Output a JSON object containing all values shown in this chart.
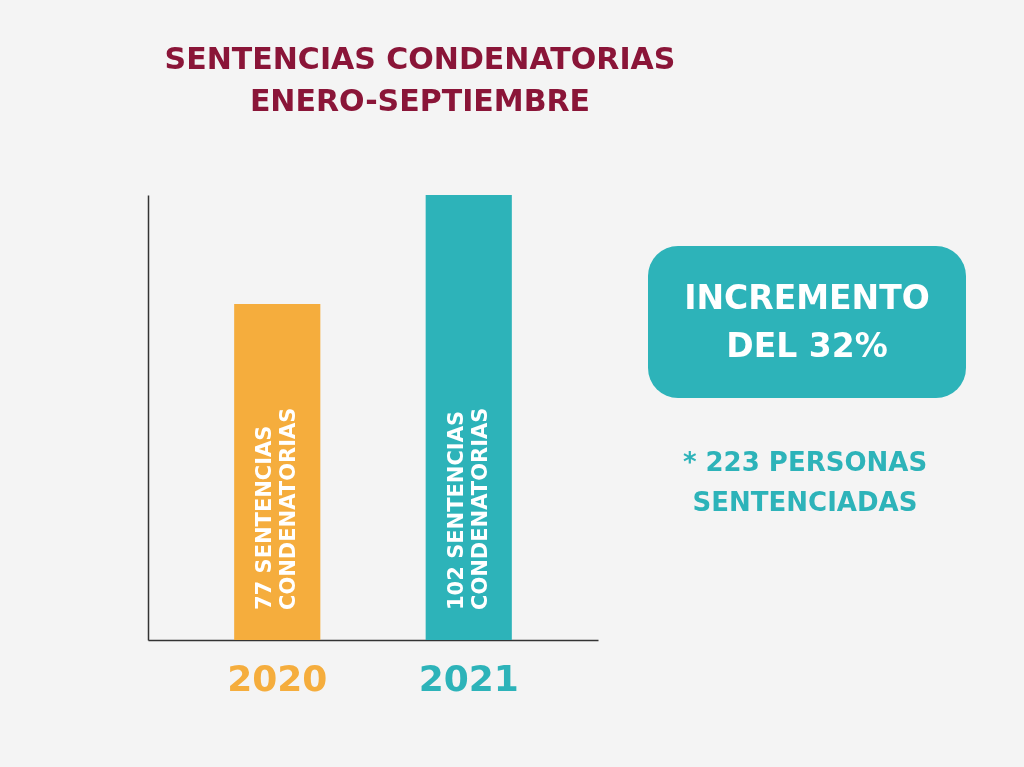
{
  "chart_data": {
    "type": "bar",
    "title": "SENTENCIAS CONDENATORIAS\nENERO-SEPTIEMBRE",
    "categories": [
      "2020",
      "2021"
    ],
    "values": [
      77,
      102
    ],
    "colors": [
      "#f5ad3d",
      "#2db3b9"
    ],
    "value_labels": [
      "77 SENTENCIAS CONDENATORIAS",
      "102 SENTENCIAS CONDENATORIAS"
    ],
    "annotations": [
      "INCREMENTO DEL 32%",
      "* 223 PERSONAS SENTENCIADAS"
    ],
    "tick_labels": "x",
    "grid": false
  }
}
